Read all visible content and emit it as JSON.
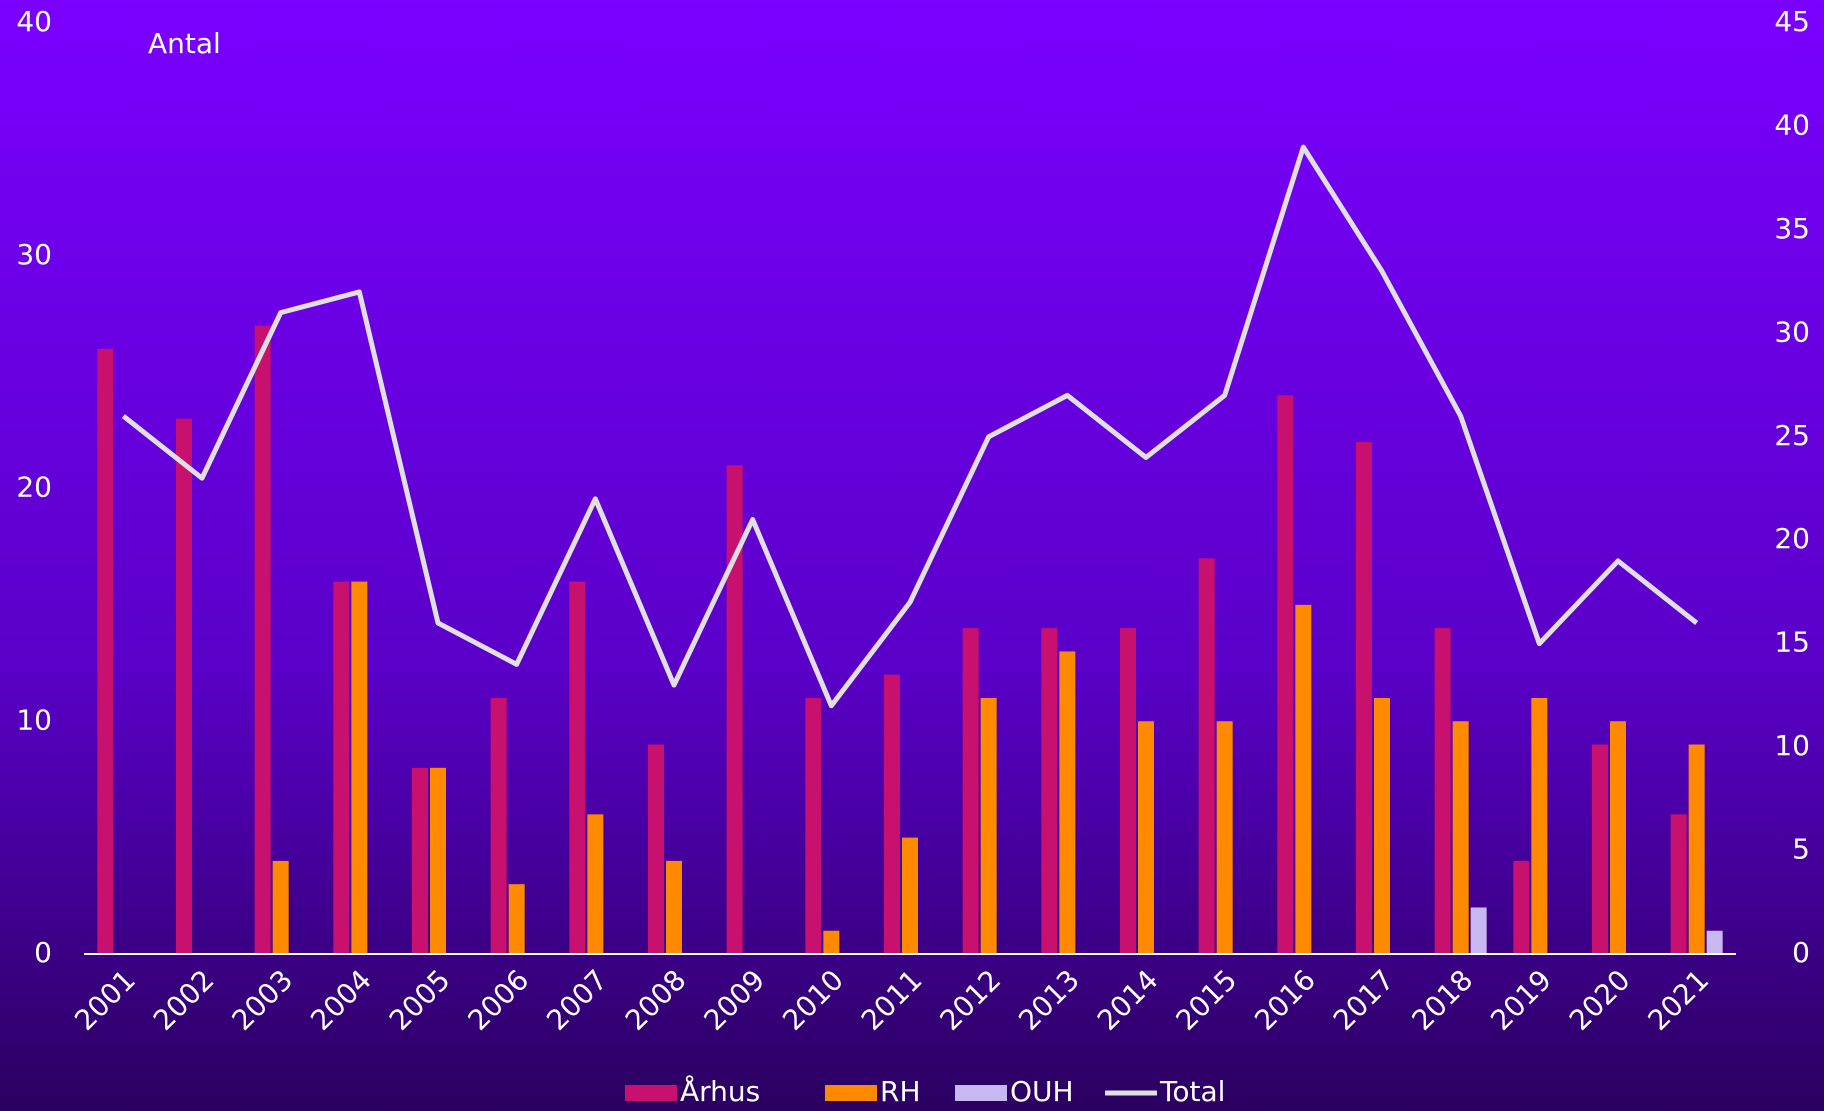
{
  "chart_data": {
    "type": "bar",
    "title": "Antal",
    "categories": [
      "2001",
      "2002",
      "2003",
      "2004",
      "2005",
      "2006",
      "2007",
      "2008",
      "2009",
      "2010",
      "2011",
      "2012",
      "2013",
      "2014",
      "2015",
      "2016",
      "2017",
      "2018",
      "2019",
      "2020",
      "2021"
    ],
    "series": [
      {
        "name": "Århus",
        "color": "#c8106e",
        "values": [
          26,
          23,
          27,
          16,
          8,
          11,
          16,
          9,
          21,
          11,
          12,
          14,
          14,
          14,
          17,
          24,
          22,
          14,
          4,
          9,
          6
        ]
      },
      {
        "name": "RH",
        "color": "#ff8a00",
        "values": [
          null,
          null,
          4,
          16,
          8,
          3,
          6,
          4,
          null,
          1,
          5,
          11,
          13,
          10,
          10,
          15,
          11,
          10,
          11,
          10,
          9
        ]
      },
      {
        "name": "OUH",
        "color": "#c8b8f0",
        "values": [
          null,
          null,
          null,
          null,
          null,
          null,
          null,
          null,
          null,
          null,
          null,
          null,
          null,
          null,
          null,
          null,
          null,
          2,
          null,
          null,
          1
        ]
      },
      {
        "name": "Total",
        "color": "#e0e0e0",
        "type": "line",
        "axis": "y2",
        "values": [
          26,
          23,
          31,
          32,
          16,
          14,
          22,
          13,
          21,
          12,
          17,
          25,
          27,
          24,
          27,
          39,
          33,
          26,
          15,
          19,
          16
        ]
      }
    ],
    "ylim": [
      0,
      40
    ],
    "yticks": [
      0,
      10,
      20,
      30,
      40
    ],
    "y2lim": [
      0,
      45
    ],
    "y2ticks": [
      0,
      5,
      10,
      15,
      20,
      25,
      30,
      35,
      40,
      45
    ]
  }
}
